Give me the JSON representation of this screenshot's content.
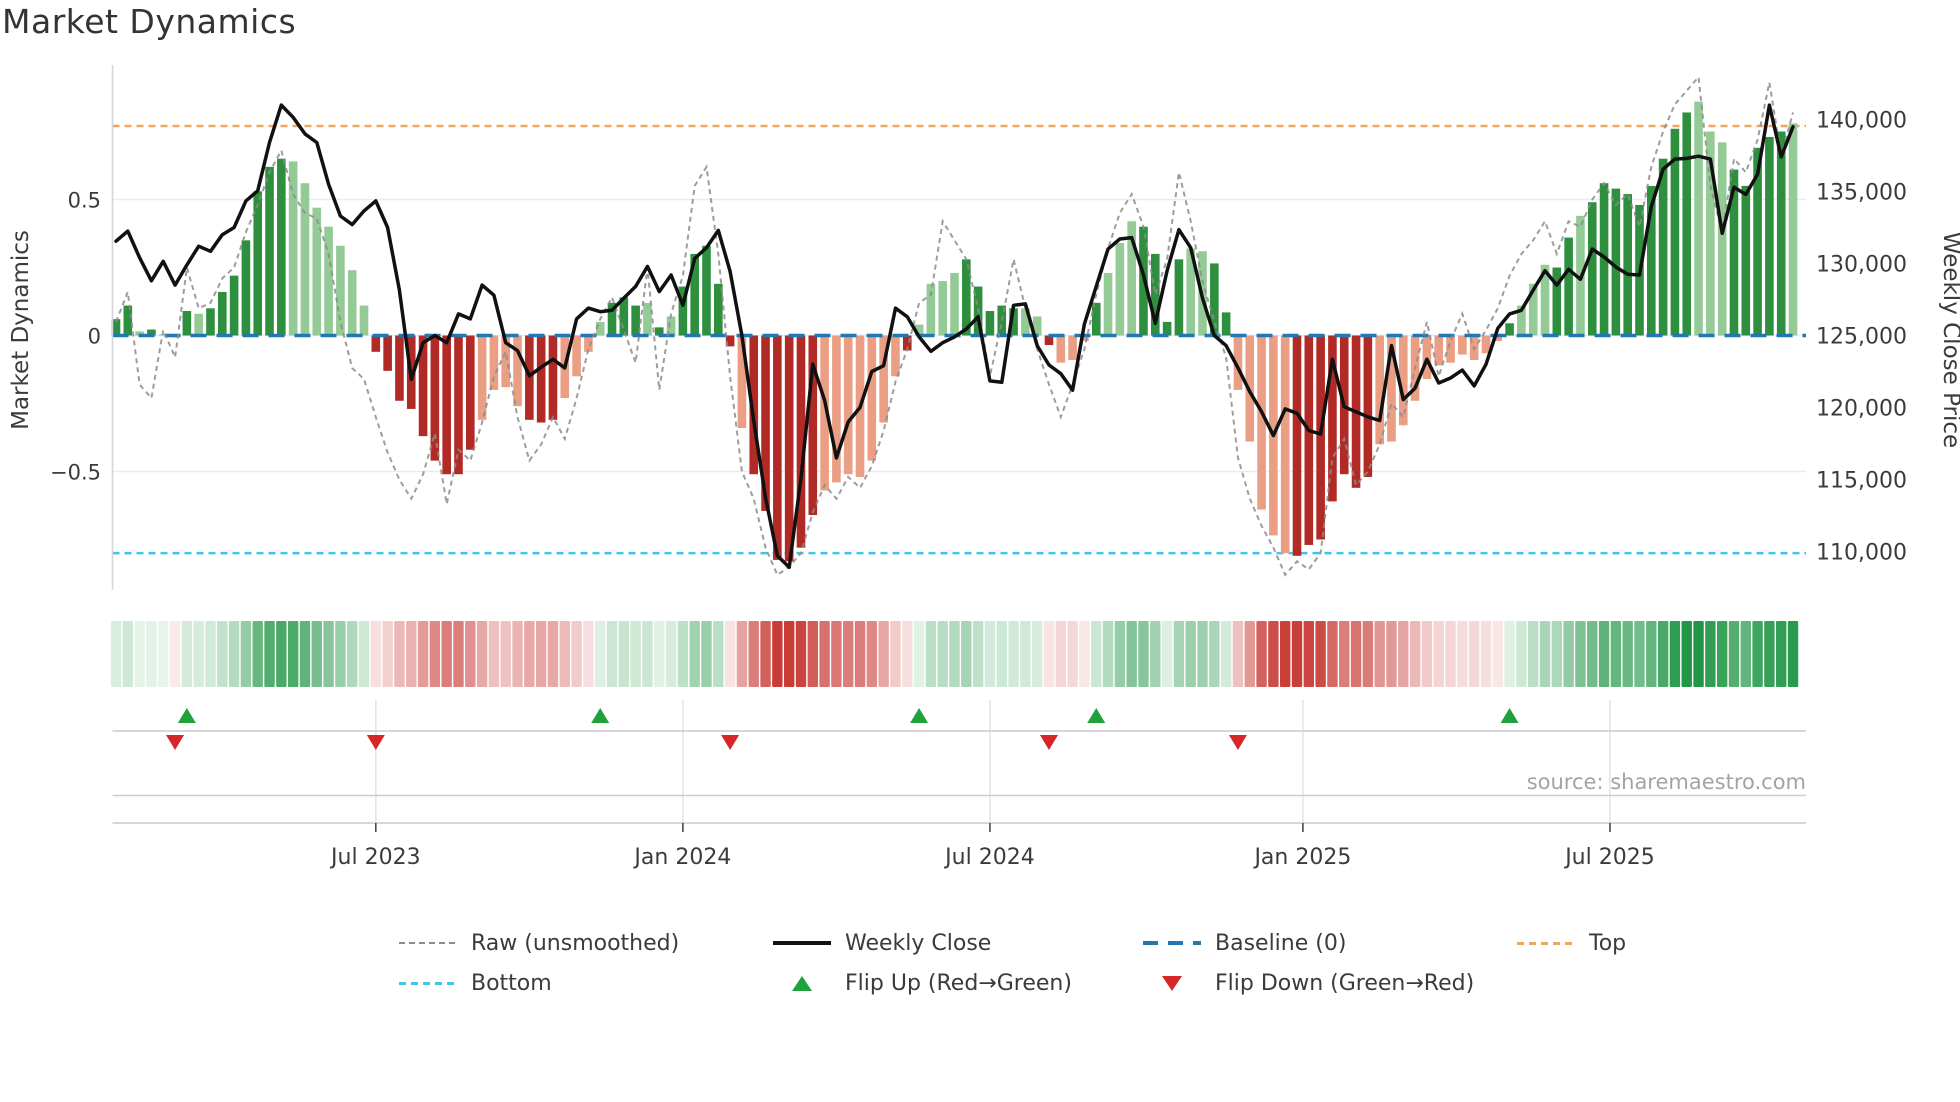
{
  "title": "Market Dynamics",
  "source": "source: sharemaestro.com",
  "left_axis": {
    "label": "Market Dynamics",
    "tick_labels": [
      "0.5",
      "0",
      "−0.5"
    ],
    "tick_values": [
      0.5,
      0,
      -0.5
    ]
  },
  "right_axis": {
    "label": "Weekly Close Price",
    "tick_labels": [
      "140,000",
      "135,000",
      "130,000",
      "125,000",
      "120,000",
      "115,000",
      "110,000"
    ],
    "tick_values": [
      140000,
      135000,
      130000,
      125000,
      120000,
      115000,
      110000
    ]
  },
  "x_axis": {
    "tick_labels": [
      "Jul 2023",
      "Jan 2024",
      "Jul 2024",
      "Jan 2025",
      "Jul 2025"
    ],
    "tick_weeks": [
      22,
      48,
      74,
      100.5,
      126.5
    ]
  },
  "legend": {
    "raw": "Raw (unsmoothed)",
    "close": "Weekly Close",
    "baseline": "Baseline (0)",
    "top": "Top",
    "bottom": "Bottom",
    "flip_up": "Flip Up (Red→Green)",
    "flip_down": "Flip Down (Green→Red)"
  },
  "colors": {
    "bar_green_dark": "#2e8f3e",
    "bar_green_light": "#94ca96",
    "bar_red_dark": "#b12a25",
    "bar_red_light": "#ea9e84",
    "close_line": "#111111",
    "raw_line": "#8c8c8c",
    "baseline": "#1f77b4",
    "top_line": "#f2a45c",
    "bottom_line": "#3ec6e8",
    "flip_up": "#1fa13c",
    "flip_down": "#d62728",
    "heat_green_rgb": [
      33,
      150,
      70
    ],
    "heat_red_rgb": [
      200,
      60,
      55
    ],
    "grid": "#ebebf0",
    "spine": "#d4d4dc",
    "lane_line": "#cbcbd1",
    "lane_grid": "#e2e2e8",
    "axis_text": "#3b3b3b"
  },
  "chart_data": {
    "type": "combo",
    "description": "Weekly market-dynamics oscillator bars (left axis) with raw unsmoothed oscillator line, weekly close price line (right axis), baseline/top/bottom reference lines, a weekly heatmap strip and regime flip markers.",
    "n_weeks": 143,
    "left_ylim": [
      -1.0,
      1.0
    ],
    "baseline": 0,
    "top_level": 0.77,
    "bottom_level": -0.8,
    "flip_up_weeks": [
      6,
      41,
      68,
      83,
      118
    ],
    "flip_down_weeks": [
      5,
      22,
      52,
      79,
      95
    ],
    "oscillator": [
      0.06,
      0.11,
      0.015,
      0.022,
      0.004,
      -0.006,
      0.09,
      0.08,
      0.1,
      0.16,
      0.22,
      0.35,
      0.53,
      0.62,
      0.65,
      0.64,
      0.56,
      0.47,
      0.4,
      0.33,
      0.24,
      0.11,
      -0.06,
      -0.13,
      -0.24,
      -0.27,
      -0.37,
      -0.46,
      -0.51,
      -0.51,
      -0.42,
      -0.31,
      -0.2,
      -0.19,
      -0.26,
      -0.31,
      -0.32,
      -0.31,
      -0.23,
      -0.15,
      -0.06,
      0.05,
      0.12,
      0.14,
      0.11,
      0.12,
      0.03,
      0.07,
      0.18,
      0.3,
      0.33,
      0.19,
      -0.04,
      -0.34,
      -0.51,
      -0.645,
      -0.825,
      -0.83,
      -0.78,
      -0.66,
      -0.57,
      -0.54,
      -0.51,
      -0.52,
      -0.46,
      -0.32,
      -0.15,
      -0.055,
      0.04,
      0.19,
      0.2,
      0.23,
      0.28,
      0.18,
      0.09,
      0.11,
      0.1,
      0.1,
      0.07,
      -0.035,
      -0.1,
      -0.09,
      -0.02,
      0.12,
      0.23,
      0.34,
      0.42,
      0.4,
      0.3,
      0.05,
      0.28,
      0.32,
      0.31,
      0.265,
      0.085,
      -0.2,
      -0.39,
      -0.64,
      -0.735,
      -0.8,
      -0.81,
      -0.77,
      -0.75,
      -0.61,
      -0.51,
      -0.56,
      -0.52,
      -0.4,
      -0.39,
      -0.33,
      -0.24,
      -0.16,
      -0.11,
      -0.1,
      -0.07,
      -0.09,
      -0.065,
      -0.02,
      0.045,
      0.11,
      0.19,
      0.26,
      0.25,
      0.36,
      0.44,
      0.49,
      0.56,
      0.54,
      0.52,
      0.48,
      0.55,
      0.65,
      0.76,
      0.82,
      0.86,
      0.75,
      0.71,
      0.61,
      0.55,
      0.69,
      0.73,
      0.75,
      0.78
    ],
    "bar_shade": "ddldlddldddddddllllllldddddddddlllldddlllldddldldddddlddddddllllllldlllldddddlldllldlllddddllddllllldddddddllllllllllldlllddldddddddddllldddddlllldddd",
    "raw": [
      0.05,
      0.16,
      -0.18,
      -0.23,
      0.02,
      -0.08,
      0.25,
      0.1,
      0.12,
      0.21,
      0.25,
      0.38,
      0.48,
      0.6,
      0.68,
      0.52,
      0.45,
      0.43,
      0.3,
      0.05,
      -0.12,
      -0.16,
      -0.3,
      -0.43,
      -0.53,
      -0.6,
      -0.51,
      -0.36,
      -0.62,
      -0.42,
      -0.46,
      -0.32,
      -0.15,
      -0.06,
      -0.3,
      -0.46,
      -0.4,
      -0.3,
      -0.38,
      -0.23,
      -0.05,
      0.06,
      0.14,
      0.02,
      -0.1,
      0.25,
      -0.2,
      0.08,
      0.22,
      0.55,
      0.62,
      0.3,
      -0.15,
      -0.5,
      -0.6,
      -0.78,
      -0.88,
      -0.85,
      -0.8,
      -0.65,
      -0.55,
      -0.6,
      -0.52,
      -0.56,
      -0.48,
      -0.35,
      -0.17,
      -0.05,
      0.12,
      0.15,
      0.42,
      0.35,
      0.28,
      0.1,
      -0.15,
      0.05,
      0.28,
      0.1,
      -0.05,
      -0.18,
      -0.3,
      -0.18,
      -0.05,
      0.15,
      0.32,
      0.45,
      0.52,
      0.4,
      0.15,
      0.28,
      0.6,
      0.42,
      0.2,
      0.05,
      -0.08,
      -0.45,
      -0.6,
      -0.7,
      -0.78,
      -0.88,
      -0.83,
      -0.86,
      -0.8,
      -0.45,
      -0.38,
      -0.55,
      -0.5,
      -0.4,
      -0.25,
      -0.3,
      -0.12,
      0.05,
      -0.15,
      -0.02,
      0.08,
      -0.05,
      0.02,
      0.1,
      0.22,
      0.3,
      0.35,
      0.42,
      0.3,
      0.42,
      0.4,
      0.5,
      0.56,
      0.48,
      0.52,
      0.4,
      0.62,
      0.75,
      0.85,
      0.9,
      0.95,
      0.55,
      0.38,
      0.65,
      0.6,
      0.72,
      0.93,
      0.66,
      0.82
    ],
    "weekly_close": [
      131550,
      132250,
      130400,
      128800,
      130150,
      128500,
      129900,
      131200,
      130850,
      132000,
      132500,
      134350,
      135050,
      138400,
      141000,
      140150,
      139000,
      138400,
      135500,
      133300,
      132700,
      133650,
      134350,
      132500,
      128150,
      121950,
      124500,
      125000,
      124500,
      126500,
      126150,
      128500,
      127800,
      124500,
      123950,
      122200,
      122800,
      123350,
      122750,
      126150,
      126900,
      126650,
      126750,
      127600,
      128400,
      129800,
      128050,
      129200,
      127100,
      130350,
      131100,
      132300,
      129450,
      125000,
      119100,
      113700,
      109700,
      108900,
      115100,
      123000,
      120500,
      116500,
      119000,
      120000,
      122500,
      122900,
      126900,
      126300,
      124900,
      123900,
      124500,
      124900,
      125450,
      126300,
      121850,
      121750,
      127100,
      127200,
      124300,
      122950,
      122350,
      121200,
      125800,
      128400,
      131000,
      131700,
      131800,
      129200,
      125850,
      129500,
      132350,
      131100,
      127600,
      125000,
      124300,
      122750,
      121100,
      119700,
      118050,
      119900,
      119600,
      118400,
      118150,
      123350,
      120050,
      119700,
      119350,
      119100,
      124300,
      120550,
      121350,
      123350,
      121700,
      122050,
      122600,
      121500,
      123000,
      125500,
      126500,
      126750,
      128150,
      129500,
      128500,
      129600,
      128900,
      131000,
      130450,
      129750,
      129250,
      129200,
      133950,
      136550,
      137250,
      137300,
      137450,
      137250,
      132100,
      135300,
      134800,
      136200,
      141000,
      137400,
      139500
    ]
  }
}
